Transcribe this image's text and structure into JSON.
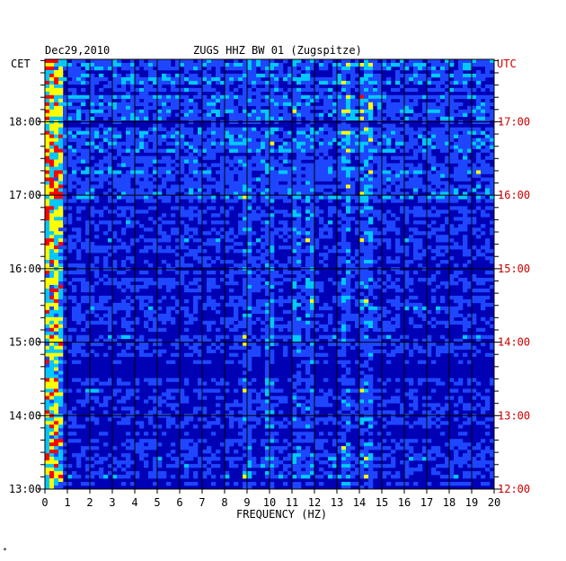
{
  "header": {
    "date": "Dec29,2010",
    "station": "ZUGS HHZ BW 01 (Zugspitze)",
    "left_tz": "CET",
    "right_tz": "UTC"
  },
  "footer_mark": "*",
  "colors": {
    "background": "#0000b4",
    "low": "#1e46ff",
    "mid": "#00c8ff",
    "high": "#ffff00",
    "peak": "#ff0000",
    "right_labels": "#cc0000",
    "grid": "#000000"
  },
  "chart_data": {
    "type": "heatmap",
    "title": "ZUGS HHZ BW 01 (Zugspitze)",
    "xlabel": "FREQUENCY (HZ)",
    "ylabel_left": "CET",
    "ylabel_right": "UTC",
    "x_ticks": [
      "0",
      "1",
      "2",
      "3",
      "4",
      "5",
      "6",
      "7",
      "8",
      "9",
      "10",
      "11",
      "12",
      "13",
      "14",
      "15",
      "16",
      "17",
      "18",
      "19",
      "20"
    ],
    "xlim": [
      0,
      20
    ],
    "y_ticks_left": [
      "13:00",
      "14:00",
      "15:00",
      "16:00",
      "17:00",
      "18:00"
    ],
    "y_ticks_right": [
      "12:00",
      "13:00",
      "14:00",
      "15:00",
      "16:00",
      "17:00"
    ],
    "ylim_cet_hours": [
      13.0,
      18.85
    ],
    "grid": true,
    "colormap": [
      "#0000b4",
      "#1e46ff",
      "#00c8ff",
      "#ffff00",
      "#ff0000"
    ],
    "notable_bands_hz": [
      0.3,
      9.0,
      10.0,
      11.2,
      11.8,
      13.4,
      14.3
    ]
  }
}
